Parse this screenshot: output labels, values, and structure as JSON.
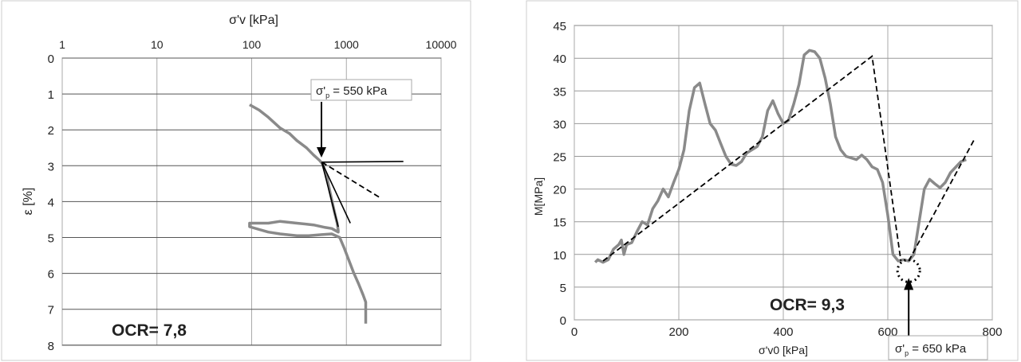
{
  "chart_data": [
    {
      "type": "line",
      "xlabel": "σ'v [kPa]",
      "ylabel": "ε [%]",
      "x_scale": "log",
      "x_axis_position": "top",
      "y_inverted": true,
      "xlim": [
        1,
        10000
      ],
      "ylim": [
        0,
        8
      ],
      "x_ticks": [
        "1",
        "10",
        "100",
        "1000",
        "10000"
      ],
      "y_ticks": [
        "0",
        "1",
        "2",
        "3",
        "4",
        "5",
        "6",
        "7",
        "8"
      ],
      "grid": true,
      "series": [
        {
          "style": "thick-gray",
          "x": [
            95,
            120,
            150,
            200,
            250,
            300,
            380,
            450,
            520,
            560,
            620,
            680,
            750,
            800,
            820,
            820,
            700,
            600,
            450,
            300,
            200,
            150,
            95,
            95,
            150,
            200,
            300,
            400,
            550,
            700,
            850,
            950,
            1050,
            1200,
            1350,
            1500,
            1600,
            1600
          ],
          "y": [
            1.3,
            1.45,
            1.65,
            1.95,
            2.1,
            2.3,
            2.5,
            2.7,
            2.85,
            2.95,
            3.3,
            3.8,
            4.3,
            4.6,
            4.8,
            4.85,
            4.75,
            4.72,
            4.65,
            4.6,
            4.55,
            4.6,
            4.6,
            4.7,
            4.85,
            4.9,
            4.95,
            4.95,
            4.92,
            4.9,
            5.0,
            5.3,
            5.6,
            6.0,
            6.3,
            6.6,
            6.8,
            7.4
          ]
        },
        {
          "style": "solid-black",
          "x": [
            550,
            4000
          ],
          "y": [
            2.9,
            2.88
          ]
        },
        {
          "style": "dashed-black",
          "x": [
            550,
            2300
          ],
          "y": [
            2.9,
            3.9
          ]
        },
        {
          "style": "solid-black",
          "x": [
            550,
            820
          ],
          "y": [
            2.9,
            4.7
          ]
        },
        {
          "style": "solid-black",
          "x": [
            550,
            1100
          ],
          "y": [
            2.9,
            4.6
          ]
        }
      ],
      "annotations": {
        "pc_label": "σ'",
        "pc_sub": "p",
        "pc_value": " = 550 kPa",
        "ocr": "OCR= 7,8",
        "pc_x": 550,
        "pc_y": 2.9
      }
    },
    {
      "type": "line",
      "xlabel": "σ'v0 [kPa]",
      "ylabel": "M[MPa]",
      "xlim": [
        0,
        800
      ],
      "ylim": [
        0,
        45
      ],
      "x_ticks": [
        "0",
        "200",
        "400",
        "600",
        "800"
      ],
      "y_ticks": [
        "0",
        "5",
        "10",
        "15",
        "20",
        "25",
        "30",
        "35",
        "40",
        "45"
      ],
      "grid": true,
      "series": [
        {
          "style": "thick-gray",
          "x": [
            40,
            45,
            55,
            65,
            75,
            85,
            90,
            95,
            100,
            110,
            120,
            130,
            140,
            150,
            160,
            170,
            180,
            190,
            200,
            210,
            220,
            230,
            240,
            250,
            260,
            270,
            280,
            290,
            300,
            310,
            320,
            330,
            350,
            360,
            370,
            380,
            390,
            400,
            410,
            420,
            430,
            440,
            450,
            460,
            470,
            480,
            490,
            500,
            510,
            520,
            540,
            550,
            560,
            570,
            580,
            590,
            600,
            610,
            620,
            630,
            640,
            650,
            660,
            670,
            680,
            690,
            700,
            710,
            720,
            740,
            750
          ],
          "y": [
            8.8,
            9.2,
            8.8,
            9.2,
            10.8,
            11.5,
            12.2,
            10,
            11.5,
            11.8,
            13.5,
            15,
            14.5,
            17,
            18.2,
            20,
            18.8,
            21,
            23,
            26,
            32,
            35.5,
            36.2,
            33,
            30,
            29,
            27,
            25,
            23.8,
            23.6,
            24.2,
            25.5,
            26.5,
            28,
            32,
            33.5,
            31.5,
            30,
            30.5,
            33,
            36,
            40.5,
            41.2,
            41,
            40,
            37,
            33,
            28,
            26,
            25,
            24.5,
            25.2,
            24.5,
            23.4,
            23,
            21,
            16,
            10,
            9,
            9.2,
            9,
            10,
            15,
            20,
            21.5,
            20.8,
            20.2,
            21,
            22.5,
            24.2,
            24.5
          ]
        },
        {
          "style": "dashed-black",
          "x": [
            55,
            570,
            625
          ],
          "y": [
            9,
            40.3,
            9
          ]
        },
        {
          "style": "dashed-black",
          "x": [
            640,
            765
          ],
          "y": [
            9,
            27.5
          ]
        }
      ],
      "annotations": {
        "pc_label": "σ'",
        "pc_sub": "p",
        "pc_value": " = 650 kPa",
        "ocr": "OCR= 9,3",
        "pc_x": 640,
        "pc_y": 7.5
      }
    }
  ]
}
